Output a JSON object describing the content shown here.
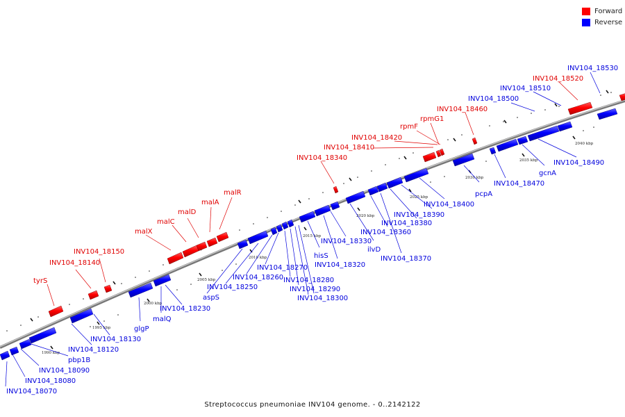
{
  "legend": [
    {
      "label": "Forward",
      "color": "#ff0000"
    },
    {
      "label": "Reverse",
      "color": "#0000ff"
    }
  ],
  "caption": "Streptococcus pneumoniae INV104 genome. - 0..2142122",
  "scale_labels": [
    "1990 kbp",
    "1995 kbp",
    "2000 kbp",
    "2005 kbp",
    "2010 kbp",
    "2015 kbp",
    "2020 kbp",
    "2025 kbp",
    "2030 kbp",
    "2035 kbp",
    "2040 kbp"
  ],
  "forward_genes": [
    "tyrS",
    "INV104_18140",
    "INV104_18150",
    "malX",
    "malC",
    "malD",
    "malA",
    "malR",
    "INV104_18340",
    "INV104_18410",
    "INV104_18420",
    "rpmF",
    "rpmG1",
    "INV104_18460",
    "INV104_18520"
  ],
  "reverse_genes": [
    "INV104_18070",
    "INV104_18080",
    "INV104_18090",
    "pbp1B",
    "INV104_18120",
    "INV104_18130",
    "glgP",
    "malQ",
    "INV104_18230",
    "aspS",
    "INV104_18250",
    "INV104_18260",
    "INV104_18270",
    "INV104_18280",
    "INV104_18290",
    "INV104_18300",
    "hisS",
    "INV104_18320",
    "INV104_18330",
    "ilvD",
    "INV104_18360",
    "INV104_18370",
    "INV104_18380",
    "INV104_18390",
    "INV104_18400",
    "pcpA",
    "INV104_18470",
    "gcnA",
    "INV104_18490",
    "INV104_18500",
    "INV104_18510",
    "INV104_18530"
  ]
}
